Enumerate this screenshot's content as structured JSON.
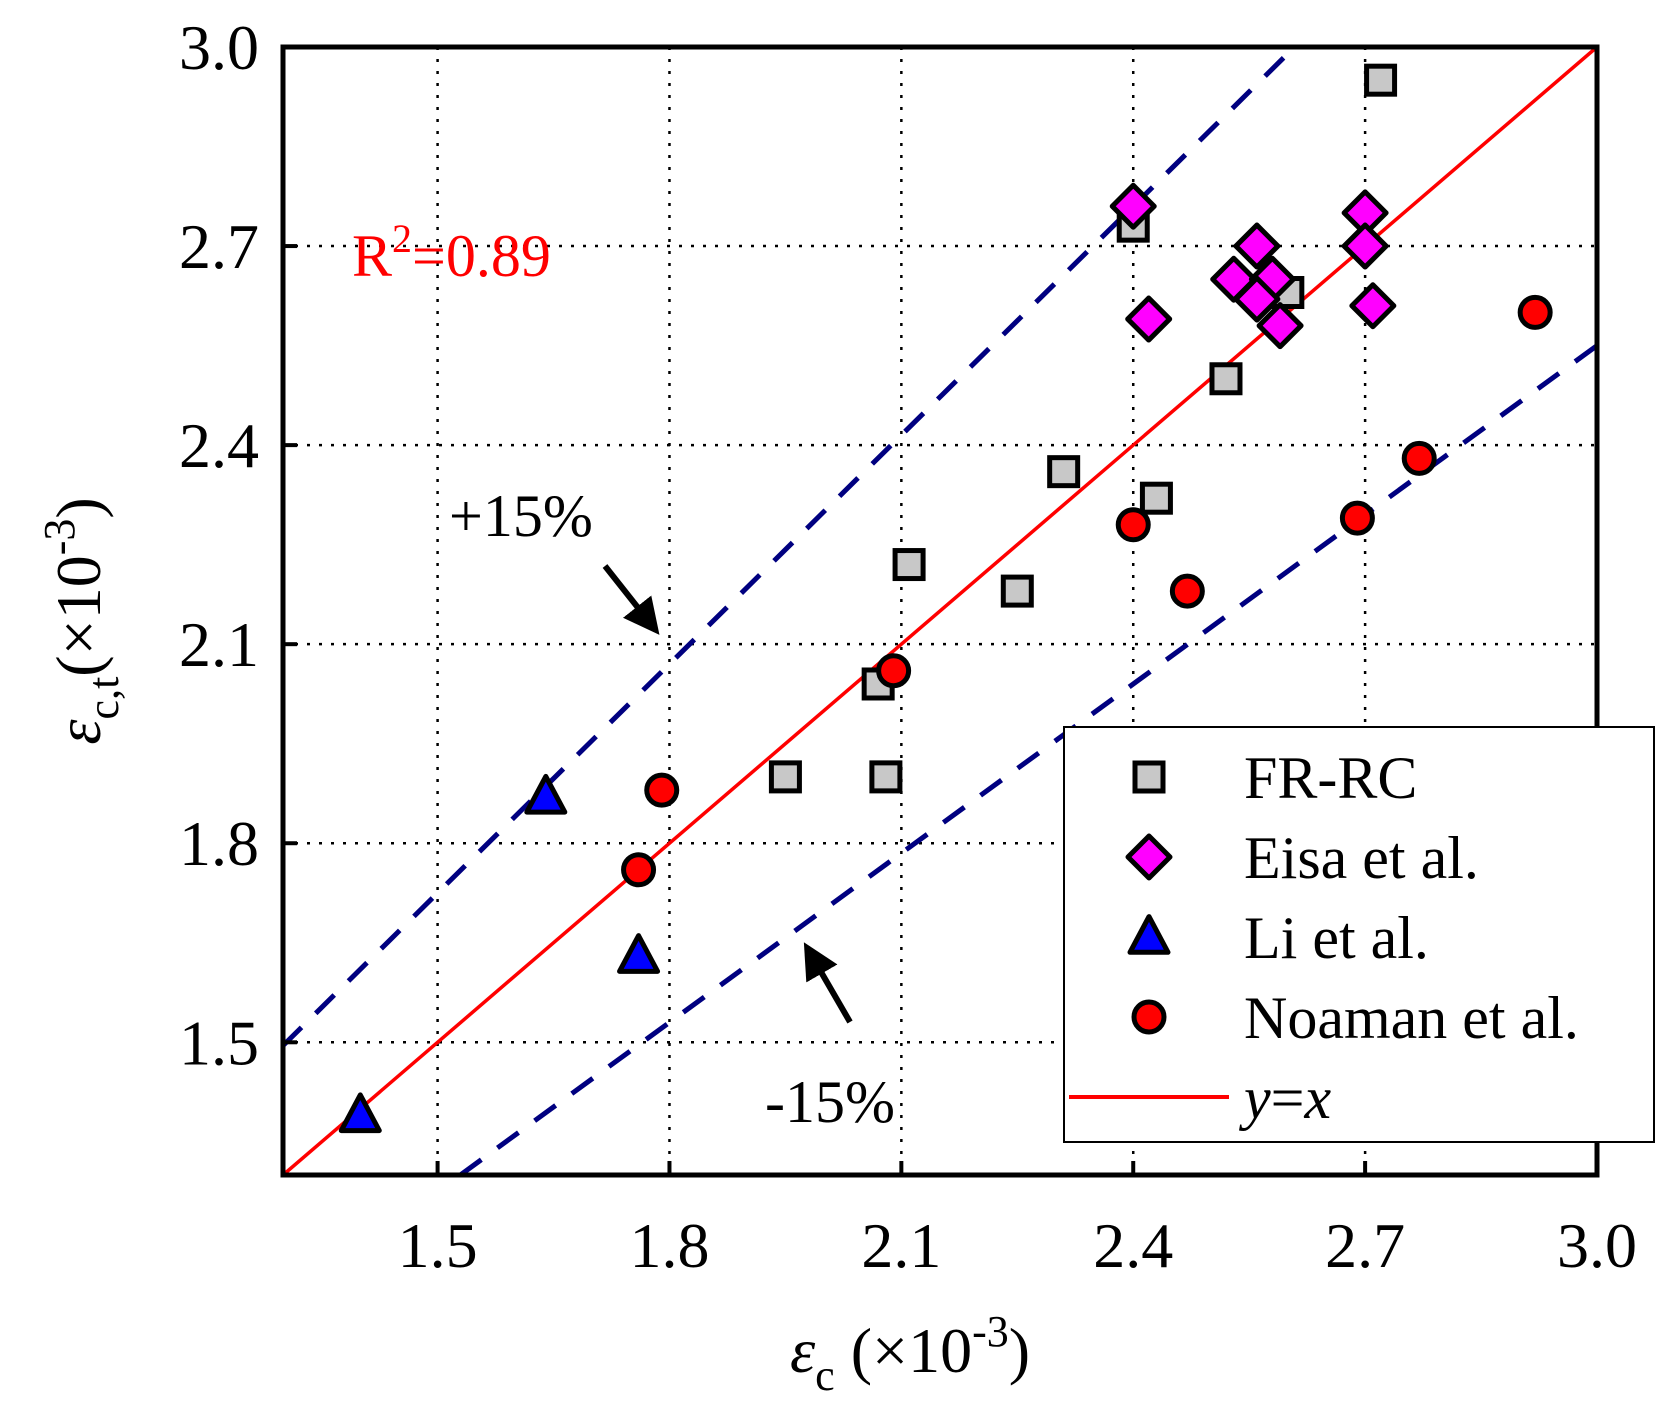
{
  "chart_data": {
    "type": "scatter",
    "title": "",
    "xlabel": {
      "symbol": "ε",
      "sub": "c",
      "unit_open": " (×10",
      "unit_exp": "-3",
      "unit_close": ")"
    },
    "ylabel": {
      "symbol": "ε",
      "sub": "c,t",
      "unit_open": "(×10",
      "unit_exp": "-3",
      "unit_close": ")"
    },
    "xlim": [
      1.3,
      3.0
    ],
    "ylim": [
      1.3,
      3.0
    ],
    "x_ticks": [
      1.5,
      1.8,
      2.1,
      2.4,
      2.7,
      3.0
    ],
    "x_tick_labels": [
      "1.5",
      "1.8",
      "2.1",
      "2.4",
      "2.7",
      "3.0"
    ],
    "y_ticks": [
      1.5,
      1.8,
      2.1,
      2.4,
      2.7,
      3.0
    ],
    "y_tick_labels": [
      "1.5",
      "1.8",
      "2.1",
      "2.4",
      "2.7",
      "3.0"
    ],
    "grid": true,
    "r2_text": {
      "base": "R",
      "sup": "2",
      "rest": "=0.89"
    },
    "series": [
      {
        "name": "FR-RC",
        "marker": "square",
        "color": "#c8c8c8",
        "points": [
          [
            2.72,
            2.95
          ],
          [
            2.4,
            2.73
          ],
          [
            2.6,
            2.63
          ],
          [
            2.52,
            2.5
          ],
          [
            2.31,
            2.36
          ],
          [
            2.43,
            2.32
          ],
          [
            2.11,
            2.22
          ],
          [
            2.25,
            2.18
          ],
          [
            2.07,
            2.04
          ],
          [
            1.95,
            1.9
          ],
          [
            2.08,
            1.9
          ]
        ]
      },
      {
        "name": "Eisa et al.",
        "marker": "diamond",
        "color": "#ff00ff",
        "points": [
          [
            2.4,
            2.76
          ],
          [
            2.7,
            2.75
          ],
          [
            2.56,
            2.7
          ],
          [
            2.7,
            2.7
          ],
          [
            2.53,
            2.65
          ],
          [
            2.58,
            2.65
          ],
          [
            2.56,
            2.62
          ],
          [
            2.71,
            2.61
          ],
          [
            2.42,
            2.59
          ],
          [
            2.59,
            2.58
          ]
        ]
      },
      {
        "name": "Li et al.",
        "marker": "triangle",
        "color": "#0000ff",
        "points": [
          [
            1.64,
            1.87
          ],
          [
            1.76,
            1.63
          ],
          [
            1.4,
            1.39
          ]
        ]
      },
      {
        "name": "Noaman et al.",
        "marker": "circle",
        "color": "#ff0000",
        "points": [
          [
            2.92,
            2.6
          ],
          [
            2.77,
            2.38
          ],
          [
            2.4,
            2.28
          ],
          [
            2.69,
            2.29
          ],
          [
            2.47,
            2.18
          ],
          [
            2.09,
            2.06
          ],
          [
            1.79,
            1.88
          ],
          [
            1.76,
            1.76
          ]
        ]
      }
    ],
    "lines": [
      {
        "name": "y=x",
        "slope": 1.0,
        "color": "#ff0000",
        "style": "solid"
      },
      {
        "name": "+15%",
        "slope": 1.15,
        "color": "#000080",
        "style": "dashed"
      },
      {
        "name": "-15%",
        "slope": 0.85,
        "color": "#000080",
        "style": "dashed"
      }
    ],
    "annotations": [
      {
        "text": "+15%",
        "tip": [
          1.79,
          2.1
        ]
      },
      {
        "text": "-15%",
        "tip": [
          1.97,
          1.67
        ]
      }
    ],
    "legend": {
      "placement": "bottom-right",
      "entries": [
        {
          "label": "FR-RC",
          "marker": "square"
        },
        {
          "label": "Eisa et al.",
          "marker": "diamond"
        },
        {
          "label": "Li et al.",
          "marker": "triangle"
        },
        {
          "label": "Noaman et al.",
          "marker": "circle"
        },
        {
          "label": "y=x",
          "marker": "line"
        }
      ]
    }
  }
}
